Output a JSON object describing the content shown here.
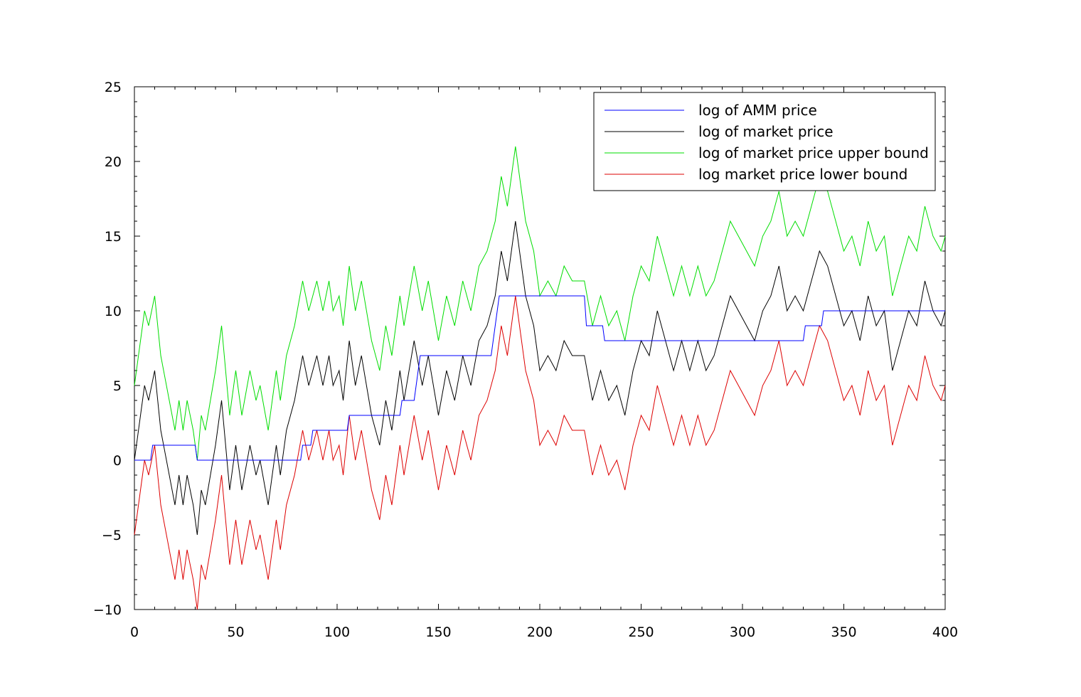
{
  "chart_data": {
    "type": "line",
    "title": "",
    "xlabel": "",
    "ylabel": "",
    "xlim": [
      0,
      400
    ],
    "ylim": [
      -10,
      25
    ],
    "xticks": [
      0,
      50,
      100,
      150,
      200,
      250,
      300,
      350,
      400
    ],
    "yticks": [
      -10,
      -5,
      0,
      5,
      10,
      15,
      20,
      25
    ],
    "grid": false,
    "legend_position": "top-right",
    "series": [
      {
        "name": "log of AMM price",
        "color": "#0000ff",
        "step": true,
        "points": [
          [
            0,
            0
          ],
          [
            8,
            0
          ],
          [
            9,
            1
          ],
          [
            30,
            1
          ],
          [
            31,
            0
          ],
          [
            82,
            0
          ],
          [
            83,
            1
          ],
          [
            87,
            1
          ],
          [
            88,
            2
          ],
          [
            105,
            2
          ],
          [
            106,
            3
          ],
          [
            131,
            3
          ],
          [
            132,
            4
          ],
          [
            138,
            4
          ],
          [
            141,
            7
          ],
          [
            176,
            7
          ],
          [
            180,
            11
          ],
          [
            222,
            11
          ],
          [
            223,
            9
          ],
          [
            231,
            9
          ],
          [
            232,
            8
          ],
          [
            330,
            8
          ],
          [
            331,
            9
          ],
          [
            339,
            9
          ],
          [
            340,
            10
          ],
          [
            400,
            10
          ]
        ]
      },
      {
        "name": "log of market price",
        "color": "#000000",
        "points": [
          [
            0,
            0
          ],
          [
            5,
            5
          ],
          [
            7,
            4
          ],
          [
            10,
            6
          ],
          [
            13,
            2
          ],
          [
            20,
            -3
          ],
          [
            22,
            -1
          ],
          [
            24,
            -3
          ],
          [
            26,
            -1
          ],
          [
            29,
            -3
          ],
          [
            31,
            -5
          ],
          [
            33,
            -2
          ],
          [
            35,
            -3
          ],
          [
            40,
            1
          ],
          [
            43,
            4
          ],
          [
            47,
            -2
          ],
          [
            50,
            1
          ],
          [
            53,
            -2
          ],
          [
            57,
            1
          ],
          [
            60,
            -1
          ],
          [
            62,
            0
          ],
          [
            66,
            -3
          ],
          [
            70,
            1
          ],
          [
            72,
            -1
          ],
          [
            75,
            2
          ],
          [
            79,
            4
          ],
          [
            83,
            7
          ],
          [
            86,
            5
          ],
          [
            90,
            7
          ],
          [
            93,
            5
          ],
          [
            96,
            7
          ],
          [
            98,
            5
          ],
          [
            101,
            6
          ],
          [
            103,
            4
          ],
          [
            106,
            8
          ],
          [
            109,
            5
          ],
          [
            112,
            7
          ],
          [
            117,
            3
          ],
          [
            121,
            1
          ],
          [
            124,
            4
          ],
          [
            127,
            2
          ],
          [
            131,
            6
          ],
          [
            133,
            4
          ],
          [
            138,
            8
          ],
          [
            142,
            5
          ],
          [
            145,
            7
          ],
          [
            150,
            3
          ],
          [
            154,
            6
          ],
          [
            158,
            4
          ],
          [
            162,
            7
          ],
          [
            166,
            5
          ],
          [
            170,
            8
          ],
          [
            174,
            9
          ],
          [
            178,
            11
          ],
          [
            181,
            14
          ],
          [
            184,
            12
          ],
          [
            188,
            16
          ],
          [
            193,
            11
          ],
          [
            197,
            9
          ],
          [
            200,
            6
          ],
          [
            204,
            7
          ],
          [
            208,
            6
          ],
          [
            212,
            8
          ],
          [
            216,
            7
          ],
          [
            222,
            7
          ],
          [
            226,
            4
          ],
          [
            230,
            6
          ],
          [
            234,
            4
          ],
          [
            238,
            5
          ],
          [
            242,
            3
          ],
          [
            246,
            6
          ],
          [
            250,
            8
          ],
          [
            254,
            7
          ],
          [
            258,
            10
          ],
          [
            262,
            8
          ],
          [
            266,
            6
          ],
          [
            270,
            8
          ],
          [
            274,
            6
          ],
          [
            278,
            8
          ],
          [
            282,
            6
          ],
          [
            286,
            7
          ],
          [
            290,
            9
          ],
          [
            294,
            11
          ],
          [
            298,
            10
          ],
          [
            302,
            9
          ],
          [
            306,
            8
          ],
          [
            310,
            10
          ],
          [
            314,
            11
          ],
          [
            318,
            13
          ],
          [
            322,
            10
          ],
          [
            326,
            11
          ],
          [
            330,
            10
          ],
          [
            334,
            12
          ],
          [
            338,
            14
          ],
          [
            342,
            13
          ],
          [
            346,
            11
          ],
          [
            350,
            9
          ],
          [
            354,
            10
          ],
          [
            358,
            8
          ],
          [
            362,
            11
          ],
          [
            366,
            9
          ],
          [
            370,
            10
          ],
          [
            374,
            6
          ],
          [
            378,
            8
          ],
          [
            382,
            10
          ],
          [
            386,
            9
          ],
          [
            390,
            12
          ],
          [
            394,
            10
          ],
          [
            398,
            9
          ],
          [
            400,
            10
          ]
        ]
      },
      {
        "name": "log of market price upper bound",
        "color": "#00dd00",
        "offset": 5,
        "base": "log of market price"
      },
      {
        "name": "log market price lower bound",
        "color": "#dd0000",
        "offset": -5,
        "base": "log of market price"
      }
    ]
  }
}
